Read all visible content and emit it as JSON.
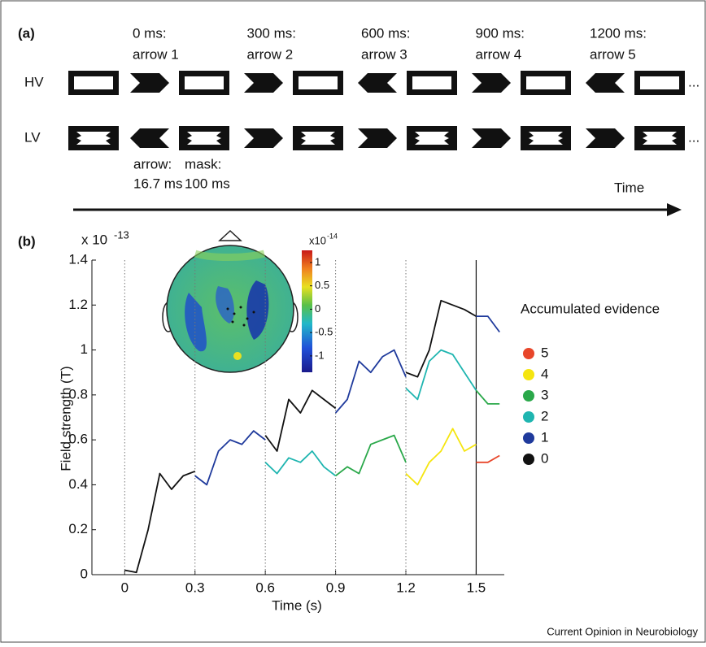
{
  "panel_a": {
    "label": "(a)",
    "times": [
      {
        "time": "0 ms:",
        "arrow": "arrow 1"
      },
      {
        "time": "300 ms:",
        "arrow": "arrow 2"
      },
      {
        "time": "600 ms:",
        "arrow": "arrow 3"
      },
      {
        "time": "900 ms:",
        "arrow": "arrow 4"
      },
      {
        "time": "1200 ms:",
        "arrow": "arrow 5"
      }
    ],
    "rows": [
      "HV",
      "LV"
    ],
    "ellipsis": "...",
    "arrow_label": "arrow:",
    "arrow_duration": "16.7 ms",
    "mask_label": "mask:",
    "mask_duration": "100 ms",
    "time_axis": "Time"
  },
  "chart_data": {
    "type": "line",
    "panel_label": "(b)",
    "xlabel": "Time (s)",
    "ylabel": "Field strength (T)",
    "y_multiplier": "x 10",
    "y_exponent": "-13",
    "xlim": [
      -0.14,
      1.62
    ],
    "ylim": [
      0,
      1.4
    ],
    "xticks": [
      0,
      0.3,
      0.6,
      0.9,
      1.2,
      1.5
    ],
    "yticks": [
      0,
      0.2,
      0.4,
      0.6,
      0.8,
      1,
      1.2,
      1.4
    ],
    "event_lines": [
      0,
      0.3,
      0.6,
      0.9,
      1.2,
      1.5
    ],
    "x": [
      0,
      0.05,
      0.1,
      0.15,
      0.2,
      0.25,
      0.3,
      0.35,
      0.4,
      0.45,
      0.5,
      0.55,
      0.6,
      0.65,
      0.7,
      0.75,
      0.8,
      0.85,
      0.9,
      0.95,
      1,
      1.05,
      1.1,
      1.15,
      1.2,
      1.25,
      1.3,
      1.35,
      1.4,
      1.45,
      1.5,
      1.55,
      1.6
    ],
    "legend_title": "Accumulated evidence",
    "series": [
      {
        "name": "0",
        "color": "#111111",
        "values": [
          0.02,
          0.01,
          0.2,
          0.45,
          0.38,
          0.44,
          0.46,
          null,
          null,
          null,
          null,
          null,
          0.62,
          0.55,
          0.78,
          0.72,
          0.82,
          0.78,
          0.74,
          null,
          null,
          null,
          null,
          null,
          0.9,
          0.88,
          1.0,
          1.22,
          1.2,
          1.18,
          1.15,
          null,
          null
        ]
      },
      {
        "name": "1",
        "color": "#1f3a9c",
        "values": [
          null,
          null,
          null,
          null,
          null,
          null,
          0.44,
          0.4,
          0.55,
          0.6,
          0.58,
          0.64,
          0.6,
          null,
          null,
          null,
          null,
          null,
          0.72,
          0.78,
          0.95,
          0.9,
          0.97,
          1.0,
          0.88,
          null,
          null,
          null,
          null,
          null,
          1.15,
          1.15,
          1.08
        ]
      },
      {
        "name": "2",
        "color": "#1fb5b0",
        "values": [
          null,
          null,
          null,
          null,
          null,
          null,
          null,
          null,
          null,
          null,
          null,
          null,
          0.5,
          0.45,
          0.52,
          0.5,
          0.55,
          0.48,
          0.44,
          null,
          null,
          null,
          null,
          null,
          0.83,
          0.78,
          0.95,
          1.0,
          0.98,
          0.9,
          0.82,
          null,
          null
        ]
      },
      {
        "name": "3",
        "color": "#2aa84a",
        "values": [
          null,
          null,
          null,
          null,
          null,
          null,
          null,
          null,
          null,
          null,
          null,
          null,
          null,
          null,
          null,
          null,
          null,
          null,
          0.44,
          0.48,
          0.45,
          0.58,
          0.6,
          0.62,
          0.5,
          null,
          null,
          null,
          null,
          null,
          0.82,
          0.76,
          0.76
        ]
      },
      {
        "name": "4",
        "color": "#f5e50f",
        "values": [
          null,
          null,
          null,
          null,
          null,
          null,
          null,
          null,
          null,
          null,
          null,
          null,
          null,
          null,
          null,
          null,
          null,
          null,
          null,
          null,
          null,
          null,
          null,
          null,
          0.45,
          0.4,
          0.5,
          0.55,
          0.65,
          0.55,
          0.58,
          null,
          null
        ]
      },
      {
        "name": "5",
        "color": "#e8462a",
        "values": [
          null,
          null,
          null,
          null,
          null,
          null,
          null,
          null,
          null,
          null,
          null,
          null,
          null,
          null,
          null,
          null,
          null,
          null,
          null,
          null,
          null,
          null,
          null,
          null,
          null,
          null,
          null,
          null,
          null,
          null,
          0.5,
          0.5,
          0.53
        ]
      }
    ],
    "inset": {
      "colorbar_multiplier": "x10",
      "colorbar_exponent": "-14",
      "colorbar_lim": [
        -1.35,
        1.26
      ],
      "colorbar_ticks": [
        1,
        0.5,
        0,
        -0.5,
        -1
      ]
    }
  },
  "footer": "Current Opinion in Neurobiology"
}
